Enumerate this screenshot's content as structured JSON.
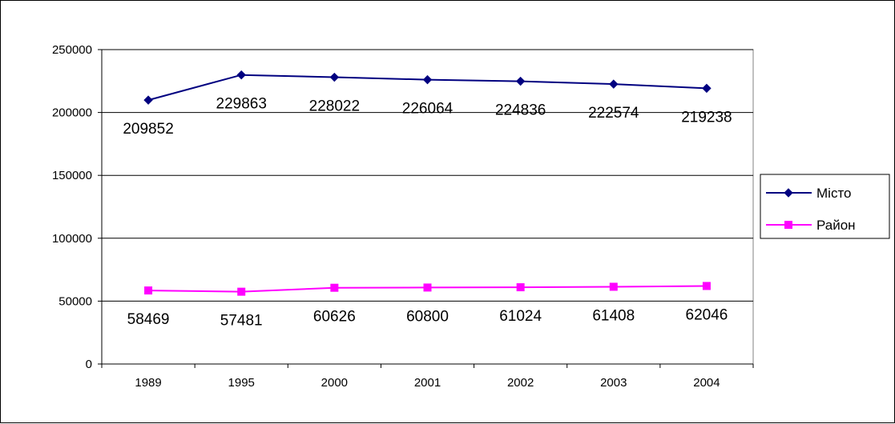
{
  "chart_data": {
    "type": "line",
    "title": "",
    "xlabel": "",
    "ylabel": "",
    "categories": [
      "1989",
      "1995",
      "2000",
      "2001",
      "2002",
      "2003",
      "2004"
    ],
    "ylim": [
      0,
      250000
    ],
    "yticks": [
      0,
      50000,
      100000,
      150000,
      200000,
      250000
    ],
    "yticks_labels": [
      "0",
      "50000",
      "100000",
      "150000",
      "200000",
      "250000"
    ],
    "grid": true,
    "legend_position": "right",
    "series": [
      {
        "name": "Місто",
        "color": "#000080",
        "marker": "diamond",
        "values": [
          209852,
          229863,
          228022,
          226064,
          224836,
          222574,
          219238
        ],
        "labels": [
          "209852",
          "229863",
          "228022",
          "226064",
          "224836",
          "222574",
          "219238"
        ]
      },
      {
        "name": "Район",
        "color": "#ff00ff",
        "marker": "square",
        "values": [
          58469,
          57481,
          60626,
          60800,
          61024,
          61408,
          62046
        ],
        "labels": [
          "58469",
          "57481",
          "60626",
          "60800",
          "61024",
          "61408",
          "62046"
        ]
      }
    ]
  }
}
